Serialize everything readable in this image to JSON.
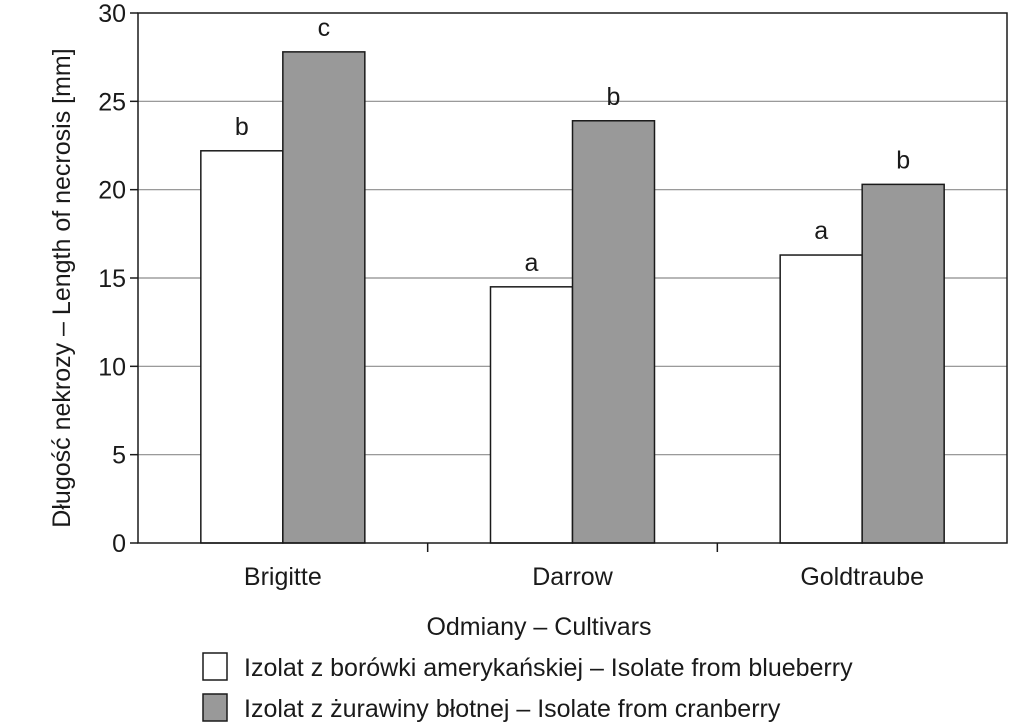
{
  "chart_data": {
    "type": "bar",
    "title": "",
    "xlabel": "Odmiany – Cultivars",
    "ylabel": "Długość nekrozy – Length of necrosis [mm]",
    "ylim": [
      0,
      30
    ],
    "yticks": [
      0,
      5,
      10,
      15,
      20,
      25,
      30
    ],
    "grid": true,
    "legend_position": "bottom",
    "categories": [
      "Brigitte",
      "Darrow",
      "Goldtraube"
    ],
    "series": [
      {
        "name": "Izolat z borówki amerykańskiej – Isolate from blueberry",
        "color": "#ffffff",
        "values": [
          22.2,
          14.5,
          16.3
        ],
        "labels": [
          "b",
          "a",
          "a"
        ]
      },
      {
        "name": "Izolat z żurawiny błotnej – Isolate from cranberry",
        "color": "#999999",
        "values": [
          27.8,
          23.9,
          20.3
        ],
        "labels": [
          "c",
          "b",
          "b"
        ]
      }
    ]
  }
}
